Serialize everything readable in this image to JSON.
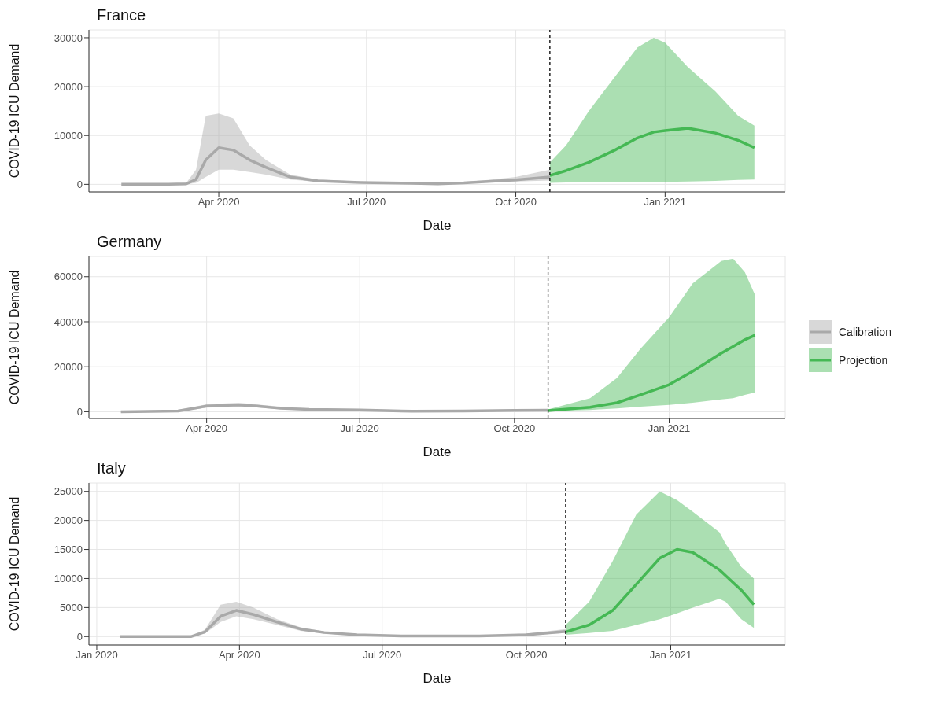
{
  "chart_data": [
    {
      "type": "line",
      "title": "France",
      "xlabel": "Date",
      "ylabel": "COVID-19 ICU Demand",
      "grid": true,
      "legend": false,
      "xlim": [
        "2020-01-12",
        "2021-03-16"
      ],
      "xticks": [
        {
          "value": "2020-04-01",
          "label": "Apr 2020"
        },
        {
          "value": "2020-07-01",
          "label": "Jul 2020"
        },
        {
          "value": "2020-10-01",
          "label": "Oct 2020"
        },
        {
          "value": "2021-01-01",
          "label": "Jan 2021"
        }
      ],
      "ylim": [
        -1550,
        31600
      ],
      "yticks": [
        0,
        10000,
        20000,
        30000
      ],
      "ref_lines": [
        {
          "axis": "x",
          "value": "2020-10-22",
          "color": "#000000",
          "line_style": "dashed"
        }
      ],
      "series": [
        {
          "color": "#a9a9a9",
          "x": [
            "2020-02-01",
            "2020-03-01",
            "2020-03-12",
            "2020-03-18",
            "2020-03-24",
            "2020-04-01",
            "2020-04-10",
            "2020-04-20",
            "2020-04-30",
            "2020-05-15",
            "2020-06-01",
            "2020-06-27",
            "2020-07-29",
            "2020-08-14",
            "2020-08-30",
            "2020-09-14",
            "2020-10-01",
            "2020-10-22"
          ],
          "values": [
            0,
            0,
            100,
            1000,
            5000,
            7500,
            7000,
            5000,
            3500,
            1500,
            700,
            400,
            200,
            100,
            300,
            600,
            900,
            1500
          ],
          "lower": [
            0,
            0,
            0,
            300,
            1500,
            3000,
            3000,
            2500,
            2000,
            1000,
            500,
            300,
            100,
            50,
            200,
            400,
            600,
            800
          ],
          "upper": [
            0,
            0,
            300,
            3000,
            14000,
            14500,
            13500,
            8000,
            5000,
            2000,
            1000,
            600,
            300,
            200,
            500,
            900,
            1500,
            3000
          ]
        },
        {
          "color": "#45b854",
          "x": [
            "2020-10-22",
            "2020-11-01",
            "2020-11-15",
            "2020-12-01",
            "2020-12-15",
            "2020-12-25",
            "2021-01-01",
            "2021-01-15",
            "2021-02-01",
            "2021-02-15",
            "2021-02-25"
          ],
          "values": [
            1800,
            2800,
            4500,
            7000,
            9500,
            10700,
            11000,
            11500,
            10500,
            9000,
            7500
          ],
          "lower": [
            300,
            400,
            400,
            500,
            500,
            500,
            500,
            600,
            700,
            900,
            1000
          ],
          "upper": [
            4500,
            8000,
            15000,
            22000,
            28000,
            30000,
            29000,
            24000,
            19000,
            14000,
            12000
          ]
        }
      ]
    },
    {
      "type": "line",
      "title": "Germany",
      "xlabel": "Date",
      "ylabel": "COVID-19 ICU Demand",
      "grid": true,
      "legend": "right",
      "xlim": [
        "2020-01-22",
        "2021-03-11"
      ],
      "xticks": [
        {
          "value": "2020-04-01",
          "label": "Apr 2020"
        },
        {
          "value": "2020-07-01",
          "label": "Jul 2020"
        },
        {
          "value": "2020-10-01",
          "label": "Oct 2020"
        },
        {
          "value": "2021-01-01",
          "label": "Jan 2021"
        }
      ],
      "ylim": [
        -3000,
        69000
      ],
      "yticks": [
        0,
        20000,
        40000,
        60000
      ],
      "ref_lines": [
        {
          "axis": "x",
          "value": "2020-10-21",
          "color": "#000000",
          "line_style": "dashed"
        }
      ],
      "series": [
        {
          "name": "Calibration",
          "color": "#a9a9a9",
          "x": [
            "2020-02-10",
            "2020-03-15",
            "2020-04-01",
            "2020-04-20",
            "2020-05-01",
            "2020-05-15",
            "2020-06-01",
            "2020-07-01",
            "2020-08-01",
            "2020-09-01",
            "2020-10-01",
            "2020-10-21"
          ],
          "values": [
            0,
            300,
            2500,
            3000,
            2500,
            1500,
            1000,
            800,
            200,
            300,
            600,
            700
          ],
          "lower": [
            0,
            0,
            1800,
            2300,
            1900,
            1000,
            600,
            400,
            0,
            0,
            200,
            300
          ],
          "upper": [
            300,
            800,
            3300,
            4000,
            3200,
            2200,
            1500,
            1200,
            600,
            700,
            1000,
            1200
          ]
        },
        {
          "name": "Projection",
          "color": "#45b854",
          "x": [
            "2020-10-21",
            "2020-11-15",
            "2020-12-01",
            "2020-12-15",
            "2021-01-01",
            "2021-01-15",
            "2021-02-01",
            "2021-02-08",
            "2021-02-15",
            "2021-02-21"
          ],
          "values": [
            500,
            2000,
            4000,
            7500,
            12000,
            18000,
            26000,
            29000,
            32000,
            34000
          ],
          "lower": [
            300,
            800,
            1500,
            2200,
            3000,
            4000,
            5500,
            6000,
            7500,
            8500
          ],
          "upper": [
            1000,
            6000,
            15000,
            28000,
            42000,
            57000,
            67000,
            68000,
            62000,
            52000
          ]
        }
      ]
    },
    {
      "type": "line",
      "title": "Italy",
      "xlabel": "Date",
      "ylabel": "COVID-19 ICU Demand",
      "grid": true,
      "legend": false,
      "xlim": [
        "2019-12-27",
        "2021-03-15"
      ],
      "xticks": [
        {
          "value": "2020-01-01",
          "label": "Jan 2020"
        },
        {
          "value": "2020-04-01",
          "label": "Apr 2020"
        },
        {
          "value": "2020-07-01",
          "label": "Jul 2020"
        },
        {
          "value": "2020-10-01",
          "label": "Oct 2020"
        },
        {
          "value": "2021-01-01",
          "label": "Jan 2021"
        }
      ],
      "ylim": [
        -1450,
        26450
      ],
      "yticks": [
        0,
        5000,
        10000,
        15000,
        20000,
        25000
      ],
      "ref_lines": [
        {
          "axis": "x",
          "value": "2020-10-26",
          "color": "#000000",
          "line_style": "dashed"
        }
      ],
      "series": [
        {
          "color": "#a9a9a9",
          "x": [
            "2020-01-16",
            "2020-03-01",
            "2020-03-10",
            "2020-03-20",
            "2020-03-30",
            "2020-04-10",
            "2020-04-25",
            "2020-05-10",
            "2020-05-25",
            "2020-06-15",
            "2020-07-15",
            "2020-09-01",
            "2020-10-01",
            "2020-10-26"
          ],
          "values": [
            0,
            0,
            800,
            3500,
            4500,
            3800,
            2500,
            1300,
            700,
            300,
            100,
            100,
            300,
            900
          ],
          "lower": [
            0,
            0,
            500,
            2500,
            3500,
            3000,
            2000,
            1000,
            500,
            200,
            50,
            50,
            200,
            600
          ],
          "upper": [
            0,
            100,
            1200,
            5500,
            6000,
            5000,
            3000,
            1600,
            900,
            400,
            200,
            200,
            500,
            1300
          ]
        },
        {
          "color": "#45b854",
          "x": [
            "2020-10-26",
            "2020-11-10",
            "2020-11-25",
            "2020-12-10",
            "2020-12-25",
            "2021-01-05",
            "2021-01-15",
            "2021-02-01",
            "2021-02-05",
            "2021-02-15",
            "2021-02-23"
          ],
          "values": [
            800,
            2000,
            4500,
            9000,
            13500,
            15000,
            14500,
            11500,
            10500,
            8000,
            5500
          ],
          "lower": [
            300,
            600,
            1000,
            2000,
            3000,
            4000,
            5000,
            6500,
            6000,
            3000,
            1500
          ],
          "upper": [
            2000,
            6000,
            13000,
            21000,
            25000,
            23500,
            21500,
            18000,
            16000,
            12000,
            10000
          ]
        }
      ]
    }
  ]
}
